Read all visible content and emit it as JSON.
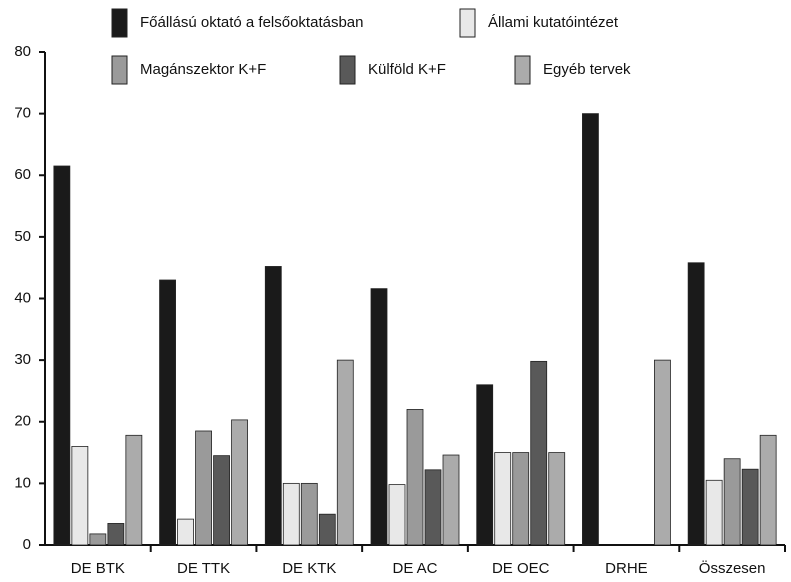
{
  "chart_data": {
    "type": "bar",
    "categories": [
      "DE BTK",
      "DE TTK",
      "DE KTK",
      "DE AC",
      "DE OEC",
      "DRHE",
      "Összesen"
    ],
    "series": [
      {
        "name": "Főállású oktató a felsőoktatásban",
        "color": "#1a1a1a",
        "values": [
          61.5,
          43,
          45.2,
          41.6,
          26,
          70,
          45.8
        ]
      },
      {
        "name": "Állami kutatóintézet",
        "color": "#e8e8e8",
        "values": [
          16,
          4.2,
          10,
          9.8,
          15,
          0,
          10.5
        ]
      },
      {
        "name": "Magánszektor K+F",
        "color": "#9a9a9a",
        "values": [
          1.8,
          18.5,
          10,
          22,
          15,
          0,
          14
        ]
      },
      {
        "name": "Külföld K+F",
        "color": "#595959",
        "values": [
          3.5,
          14.5,
          5,
          12.2,
          29.8,
          0,
          12.3
        ]
      },
      {
        "name": "Egyéb tervek",
        "color": "#ababab",
        "values": [
          17.8,
          20.3,
          30,
          14.6,
          15,
          30,
          17.8
        ]
      }
    ],
    "ylim": [
      0,
      80
    ],
    "yticks": [
      0,
      10,
      20,
      30,
      40,
      50,
      60,
      70,
      80
    ],
    "grid": false,
    "legend": "top"
  }
}
